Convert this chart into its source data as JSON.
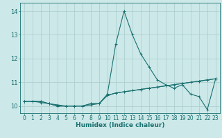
{
  "xlabel": "Humidex (Indice chaleur)",
  "ylabel": "",
  "bg_color": "#cce8e8",
  "grid_color": "#aacccc",
  "line_color": "#1a7070",
  "xlim": [
    -0.5,
    23.5
  ],
  "ylim": [
    9.7,
    14.35
  ],
  "yticks": [
    10,
    11,
    12,
    13,
    14
  ],
  "xticks": [
    0,
    1,
    2,
    3,
    4,
    5,
    6,
    7,
    8,
    9,
    10,
    11,
    12,
    13,
    14,
    15,
    16,
    17,
    18,
    19,
    20,
    21,
    22,
    23
  ],
  "series": [
    [
      10.2,
      10.2,
      10.2,
      10.1,
      10.0,
      10.0,
      10.0,
      10.0,
      10.1,
      10.1,
      10.5,
      12.6,
      14.0,
      13.0,
      12.2,
      11.65,
      11.1,
      10.9,
      10.75,
      10.9,
      10.5,
      10.4,
      9.85,
      11.15
    ],
    [
      10.2,
      10.2,
      10.15,
      10.1,
      10.0,
      10.0,
      10.0,
      10.0,
      10.05,
      10.1,
      10.45,
      10.55,
      10.6,
      10.65,
      10.7,
      10.75,
      10.8,
      10.85,
      10.9,
      10.95,
      11.0,
      11.05,
      11.1,
      11.15
    ],
    [
      10.2,
      10.2,
      10.2,
      10.1,
      10.05,
      10.0,
      10.0,
      10.0,
      10.1,
      10.1,
      10.45,
      10.55,
      10.6,
      10.65,
      10.7,
      10.75,
      10.8,
      10.85,
      10.9,
      10.95,
      11.0,
      11.05,
      11.1,
      11.15
    ]
  ],
  "tick_fontsize": 5.5,
  "xlabel_fontsize": 6.5,
  "marker_size": 2.5,
  "line_width": 0.8
}
